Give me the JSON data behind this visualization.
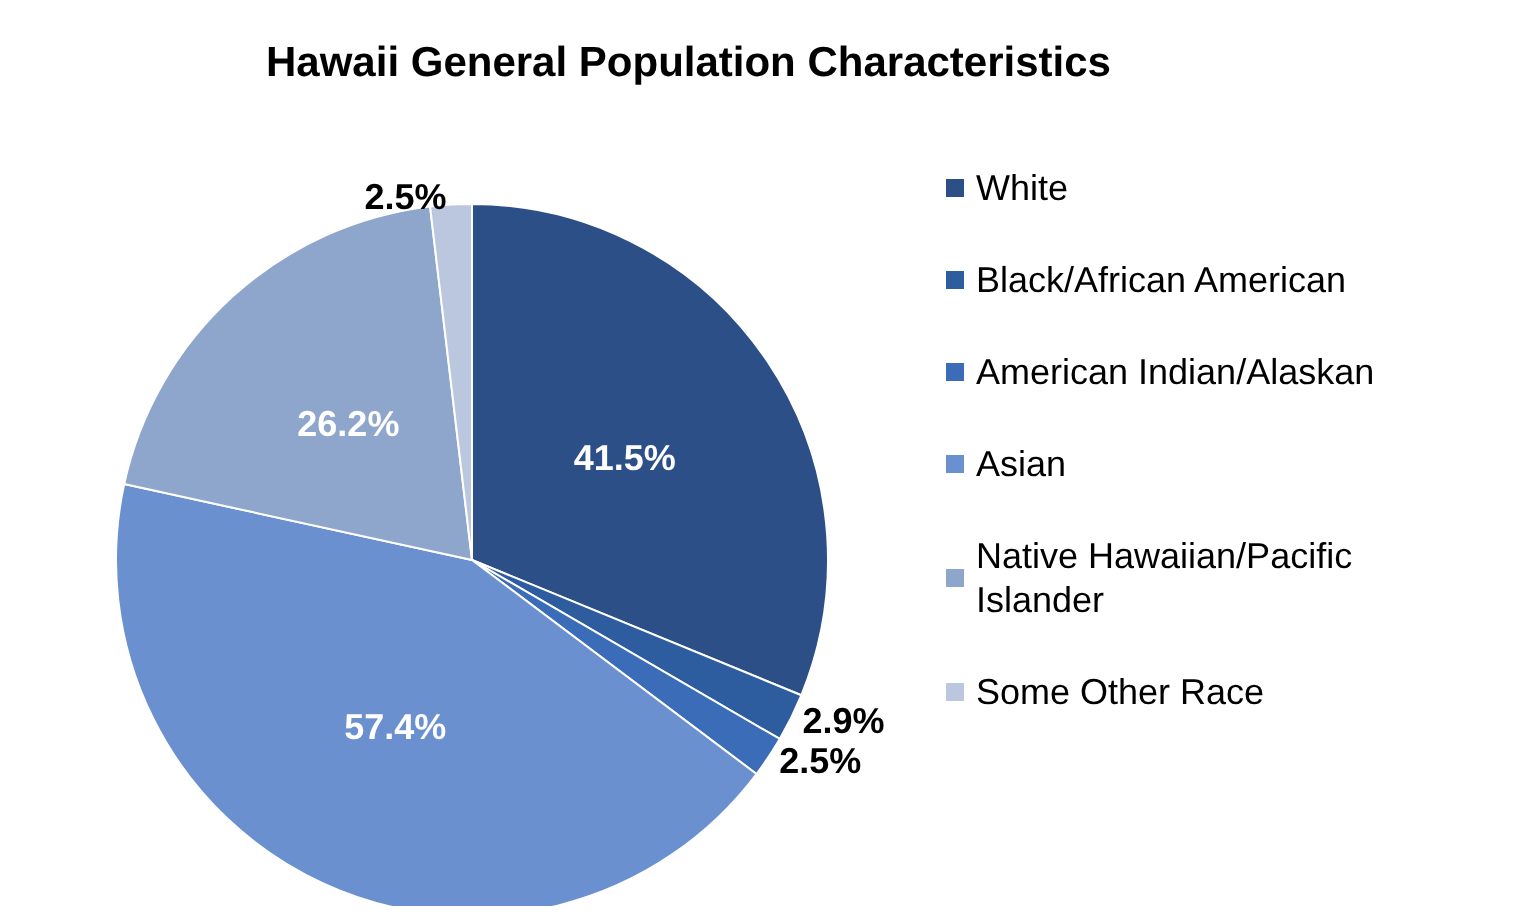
{
  "chart_data": {
    "type": "pie",
    "title": "Hawaii General Population Characteristics",
    "categories": [
      "White",
      "Black/African American",
      "American Indian/Alaskan",
      "Asian",
      "Native Hawaiian/Pacific Islander",
      "Some Other Race"
    ],
    "values": [
      41.5,
      2.9,
      2.5,
      57.4,
      26.2,
      2.5
    ],
    "value_labels": [
      "41.5%",
      "2.9%",
      "2.5%",
      "57.4%",
      "26.2%",
      "2.5%"
    ],
    "colors": [
      "#2b4f86",
      "#2d5c9f",
      "#3b6cb8",
      "#6a90cf",
      "#8fa6cc",
      "#bac7de"
    ],
    "legend": "right"
  }
}
